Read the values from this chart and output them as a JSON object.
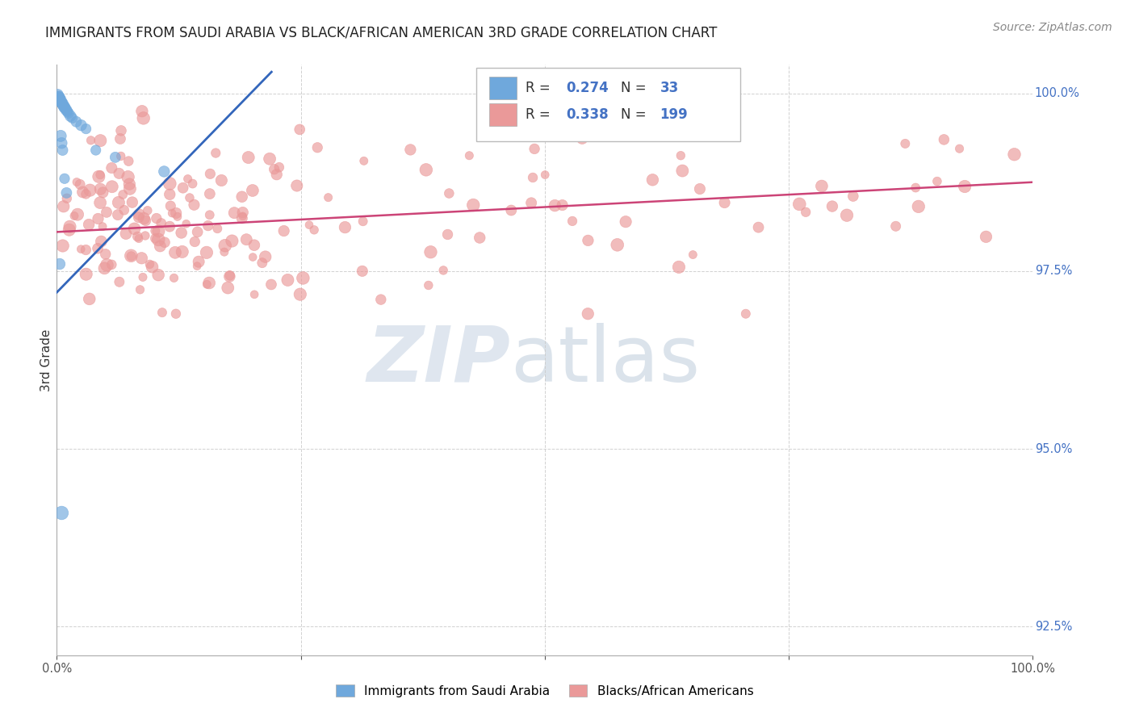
{
  "title": "IMMIGRANTS FROM SAUDI ARABIA VS BLACK/AFRICAN AMERICAN 3RD GRADE CORRELATION CHART",
  "source": "Source: ZipAtlas.com",
  "legend_label1": "Immigrants from Saudi Arabia",
  "legend_label2": "Blacks/African Americans",
  "R1": "0.274",
  "N1": "33",
  "R2": "0.338",
  "N2": "199",
  "blue_color": "#6fa8dc",
  "pink_color": "#ea9999",
  "blue_line_color": "#3366bb",
  "pink_line_color": "#cc4477",
  "right_tick_color": "#4472c4",
  "title_color": "#222222",
  "source_color": "#888888",
  "grid_color": "#cccccc",
  "xmin": 0.0,
  "xmax": 1.0,
  "ymin": 0.921,
  "ymax": 1.004,
  "yticks": [
    1.0,
    0.975,
    0.95,
    0.925
  ],
  "ytick_labels": [
    "100.0%",
    "97.5%",
    "95.0%",
    "92.5%"
  ],
  "xtick_labels_show": [
    "0.0%",
    "100.0%"
  ],
  "ylabel": "3rd Grade",
  "blue_trend": [
    0.0,
    0.22
  ],
  "blue_trend_y": [
    0.972,
    1.003
  ],
  "pink_trend": [
    0.0,
    1.0
  ],
  "pink_trend_y": [
    0.9805,
    0.9875
  ],
  "watermark_zip": "ZIP",
  "watermark_atlas": "atlas"
}
